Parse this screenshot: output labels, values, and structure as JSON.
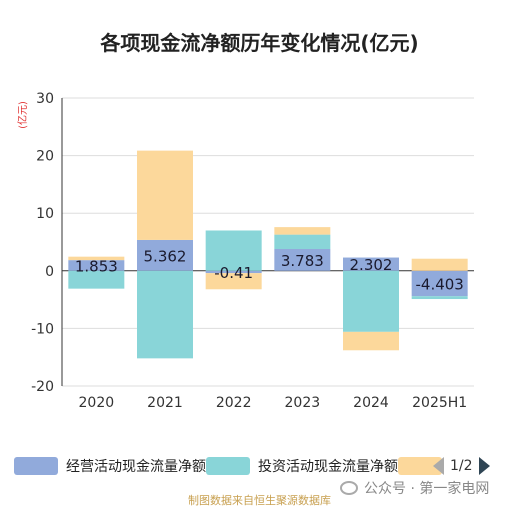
{
  "chart_data": {
    "type": "bar",
    "stacked": true,
    "title": "各项现金流净额历年变化情况(亿元)",
    "ylabel": "(亿元)",
    "categories": [
      "2020",
      "2021",
      "2022",
      "2023",
      "2024",
      "2025H1"
    ],
    "ylim": [
      -20,
      30
    ],
    "yticks": [
      -20,
      -10,
      0,
      10,
      20,
      30
    ],
    "grid": true,
    "legend_position": "bottom",
    "series": [
      {
        "name": "经营活动现金流量净额",
        "color": "#91aadb",
        "values": [
          1.853,
          5.362,
          -0.41,
          3.783,
          2.302,
          -4.403
        ]
      },
      {
        "name": "投资活动现金流量净额",
        "color": "#89d5d8",
        "values": [
          -3.1,
          -15.2,
          7.0,
          2.5,
          -10.6,
          -0.5
        ]
      },
      {
        "name": "",
        "color": "#fcd89b",
        "values": [
          0.6,
          15.5,
          -2.8,
          1.3,
          -3.2,
          2.1
        ]
      }
    ],
    "data_labels": [
      "1.853",
      "5.362",
      "-0.41",
      "3.783",
      "2.302",
      "-4.403"
    ]
  },
  "legend": {
    "page_text": "1/2"
  },
  "footer": {
    "source_text": "制图数据来自恒生聚源数据库",
    "watermark_text": "公众号 · 第一家电网"
  }
}
